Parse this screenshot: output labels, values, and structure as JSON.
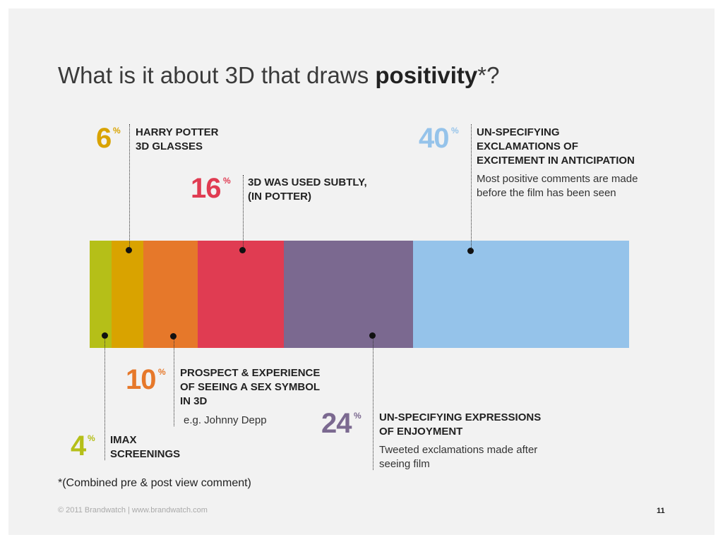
{
  "title": {
    "prefix": "What is it about 3D that draws ",
    "bold": "positivity",
    "suffix": "*?"
  },
  "chart_data": {
    "type": "bar",
    "orientation": "stacked-horizontal",
    "unit": "%",
    "series": [
      {
        "label_pct": "4",
        "value": 4,
        "label": "IMAX\nSCREENINGS",
        "sub": "",
        "color": "#b5bf18"
      },
      {
        "label_pct": "6",
        "value": 6,
        "label": "HARRY POTTER\n3D GLASSES",
        "sub": "",
        "color": "#d9a300"
      },
      {
        "label_pct": "10",
        "value": 10,
        "label": "PROSPECT & EXPERIENCE\nOF SEEING A SEX SYMBOL\nIN 3D",
        "sub": "e.g. Johnny Depp",
        "color": "#e6782a"
      },
      {
        "label_pct": "16",
        "value": 16,
        "label": "3D WAS USED SUBTLY,\n(IN POTTER)",
        "sub": "",
        "color": "#e03c52"
      },
      {
        "label_pct": "24",
        "value": 24,
        "label": "UN-SPECIFYING EXPRESSIONS\nOF ENJOYMENT",
        "sub": "Tweeted exclamations made after\nseeing film",
        "color": "#7b6990"
      },
      {
        "label_pct": "40",
        "value": 40,
        "label": "UN-SPECIFYING\nEXCLAMATIONS OF\nEXCITEMENT IN ANTICIPATION",
        "sub": "Most positive comments are made\nbefore the film has been seen",
        "color": "#95c3ea"
      }
    ]
  },
  "percent_symbol": "%",
  "footnote": "*(Combined pre & post view comment)",
  "footer": "© 2011 Brandwatch  |  www.brandwatch.com",
  "page_number": "11"
}
